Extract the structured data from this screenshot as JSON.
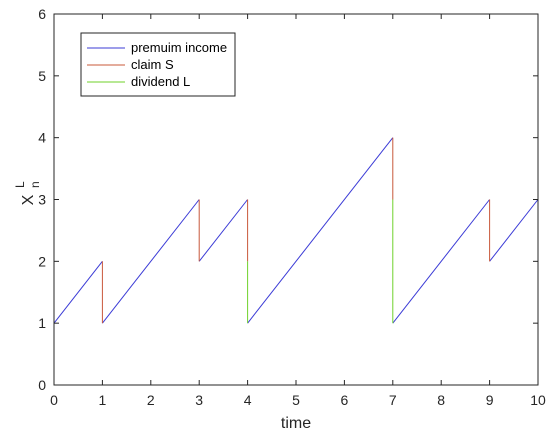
{
  "chart_data": {
    "type": "line",
    "title": "",
    "xlabel": "time",
    "ylabel": {
      "base": "X",
      "sup": "L",
      "sub": "n"
    },
    "xlim": [
      0,
      10
    ],
    "ylim": [
      0,
      6
    ],
    "xticks": [
      0,
      1,
      2,
      3,
      4,
      5,
      6,
      7,
      8,
      9,
      10
    ],
    "yticks": [
      0,
      1,
      2,
      3,
      4,
      5,
      6
    ],
    "grid": false,
    "legend_position": "top-left",
    "series": [
      {
        "name": "premuim income",
        "color": "#3b3bd6",
        "segments": [
          [
            [
              0,
              1
            ],
            [
              1,
              2
            ]
          ],
          [
            [
              1,
              1
            ],
            [
              3,
              3
            ]
          ],
          [
            [
              3,
              2
            ],
            [
              4,
              3
            ]
          ],
          [
            [
              4,
              1
            ],
            [
              7,
              4
            ]
          ],
          [
            [
              7,
              1
            ],
            [
              9,
              3
            ]
          ],
          [
            [
              9,
              2
            ],
            [
              10,
              3
            ]
          ]
        ]
      },
      {
        "name": "claim S",
        "color": "#c8583a",
        "segments": [
          [
            [
              1,
              2
            ],
            [
              1,
              1
            ]
          ],
          [
            [
              3,
              3
            ],
            [
              3,
              2
            ]
          ],
          [
            [
              4,
              3
            ],
            [
              4,
              2
            ]
          ],
          [
            [
              7,
              4
            ],
            [
              7,
              3
            ]
          ],
          [
            [
              9,
              3
            ],
            [
              9,
              2
            ]
          ]
        ]
      },
      {
        "name": "dividend L",
        "color": "#6fd12a",
        "segments": [
          [
            [
              4,
              2
            ],
            [
              4,
              1
            ]
          ],
          [
            [
              7,
              3
            ],
            [
              7,
              1
            ]
          ]
        ]
      }
    ]
  }
}
